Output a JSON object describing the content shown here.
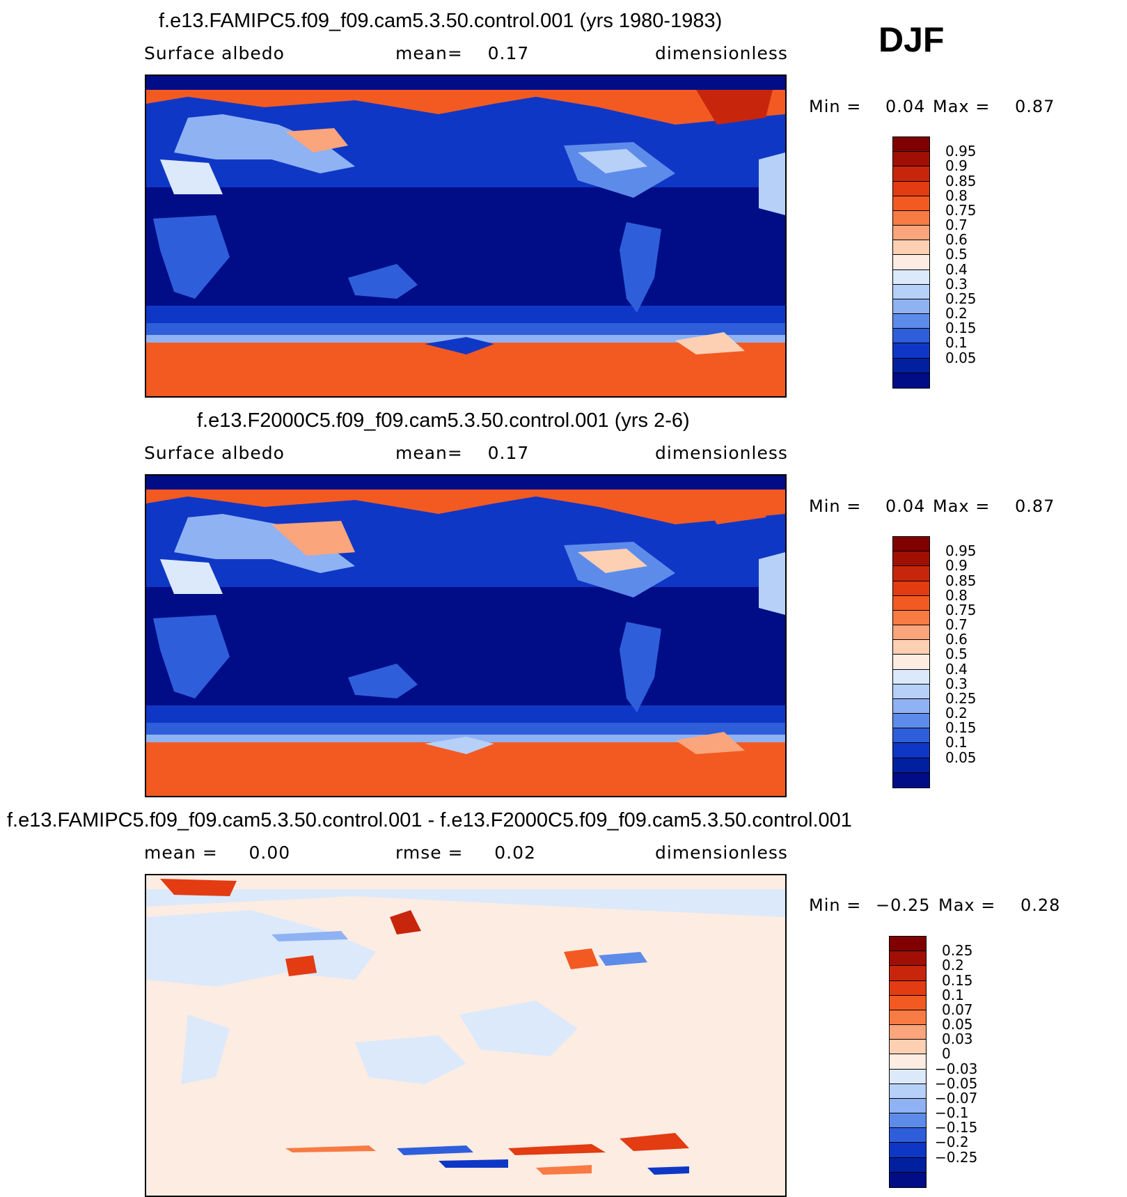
{
  "season": "DJF",
  "panels": [
    {
      "title": "f.e13.FAMIPC5.f09_f09.cam5.3.50.control.001 (yrs 1980-1983)",
      "left_label": "Surface albedo",
      "center_label": "mean=    0.17",
      "right_label": "dimensionless",
      "min_label": "Min =",
      "min_value": "0.04",
      "max_label": "Max =",
      "max_value": "0.87",
      "colorbar": {
        "labels": [
          "0.95",
          "0.9",
          "0.85",
          "0.8",
          "0.75",
          "0.7",
          "0.6",
          "0.5",
          "0.4",
          "0.3",
          "0.25",
          "0.2",
          "0.15",
          "0.1",
          "0.05"
        ],
        "colors": [
          "#800000",
          "#a10f04",
          "#c8260c",
          "#e33b12",
          "#f25a22",
          "#f77b43",
          "#fba57c",
          "#fdd0b4",
          "#fdece2",
          "#dbe9fb",
          "#b6d0f8",
          "#8fb2f3",
          "#5d8bea",
          "#2f5edb",
          "#0f37c6",
          "#0020a0",
          "#000d87"
        ]
      }
    },
    {
      "title": "f.e13.F2000C5.f09_f09.cam5.3.50.control.001 (yrs 2-6)",
      "left_label": "Surface albedo",
      "center_label": "mean=    0.17",
      "right_label": "dimensionless",
      "min_label": "Min =",
      "min_value": "0.04",
      "max_label": "Max =",
      "max_value": "0.87",
      "colorbar": {
        "labels": [
          "0.95",
          "0.9",
          "0.85",
          "0.8",
          "0.75",
          "0.7",
          "0.6",
          "0.5",
          "0.4",
          "0.3",
          "0.25",
          "0.2",
          "0.15",
          "0.1",
          "0.05"
        ],
        "colors": [
          "#800000",
          "#a10f04",
          "#c8260c",
          "#e33b12",
          "#f25a22",
          "#f77b43",
          "#fba57c",
          "#fdd0b4",
          "#fdece2",
          "#dbe9fb",
          "#b6d0f8",
          "#8fb2f3",
          "#5d8bea",
          "#2f5edb",
          "#0f37c6",
          "#0020a0",
          "#000d87"
        ]
      }
    },
    {
      "title": "f.e13.FAMIPC5.f09_f09.cam5.3.50.control.001 - f.e13.F2000C5.f09_f09.cam5.3.50.control.001",
      "left_label": "mean =     0.00",
      "center_label": "rmse =     0.02",
      "right_label": "dimensionless",
      "min_label": "Min =",
      "min_value": "−0.25",
      "max_label": "Max =",
      "max_value": "0.28",
      "colorbar": {
        "labels": [
          "0.25",
          "0.2",
          "0.15",
          "0.1",
          "0.07",
          "0.05",
          "0.03",
          "0",
          "−0.03",
          "−0.05",
          "−0.07",
          "−0.1",
          "−0.15",
          "−0.2",
          "−0.25"
        ],
        "colors": [
          "#800000",
          "#a10f04",
          "#c8260c",
          "#e33b12",
          "#f25a22",
          "#f77b43",
          "#fba57c",
          "#fdd0b4",
          "#fdece2",
          "#dbe9fb",
          "#b6d0f8",
          "#8fb2f3",
          "#5d8bea",
          "#2f5edb",
          "#0f37c6",
          "#0020a0",
          "#000d87"
        ]
      }
    }
  ]
}
